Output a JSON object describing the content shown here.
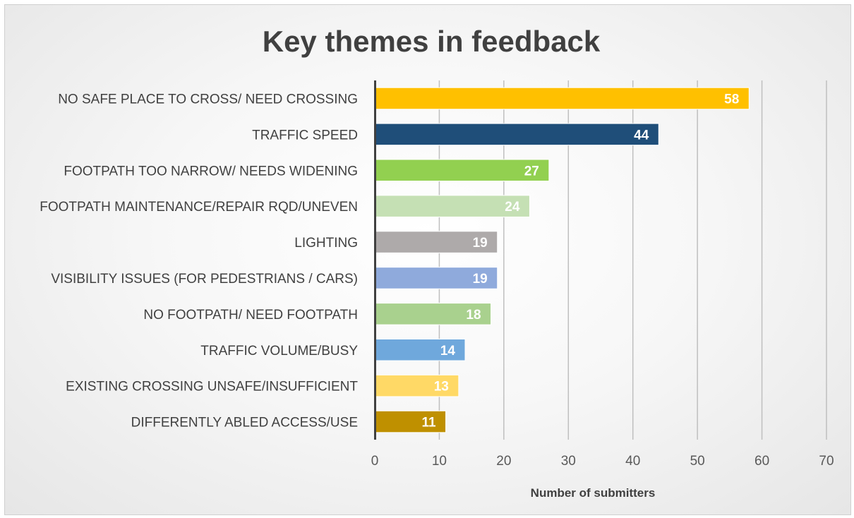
{
  "chart_data": {
    "type": "bar",
    "orientation": "horizontal",
    "title": "Key themes in feedback",
    "xlabel": "Number of submitters",
    "ylabel": "",
    "xlim": [
      0,
      70
    ],
    "x_ticks": [
      0,
      10,
      20,
      30,
      40,
      50,
      60,
      70
    ],
    "grid": "vertical",
    "legend": "none",
    "categories": [
      "NO SAFE PLACE TO CROSS/ NEED CROSSING",
      "TRAFFIC SPEED",
      "FOOTPATH TOO NARROW/ NEEDS WIDENING",
      "FOOTPATH MAINTENANCE/REPAIR RQD/UNEVEN",
      "LIGHTING",
      "VISIBILITY ISSUES (FOR PEDESTRIANS / CARS)",
      "NO FOOTPATH/ NEED FOOTPATH",
      "TRAFFIC VOLUME/BUSY",
      "EXISTING CROSSING UNSAFE/INSUFFICIENT",
      "DIFFERENTLY ABLED ACCESS/USE"
    ],
    "values": [
      58,
      44,
      27,
      24,
      19,
      19,
      18,
      14,
      13,
      11
    ],
    "colors": [
      "#ffc000",
      "#1f4e79",
      "#92d050",
      "#c5e0b4",
      "#aeaaaa",
      "#8faadc",
      "#a9d18e",
      "#6fa8dc",
      "#ffd966",
      "#bf9000"
    ]
  }
}
